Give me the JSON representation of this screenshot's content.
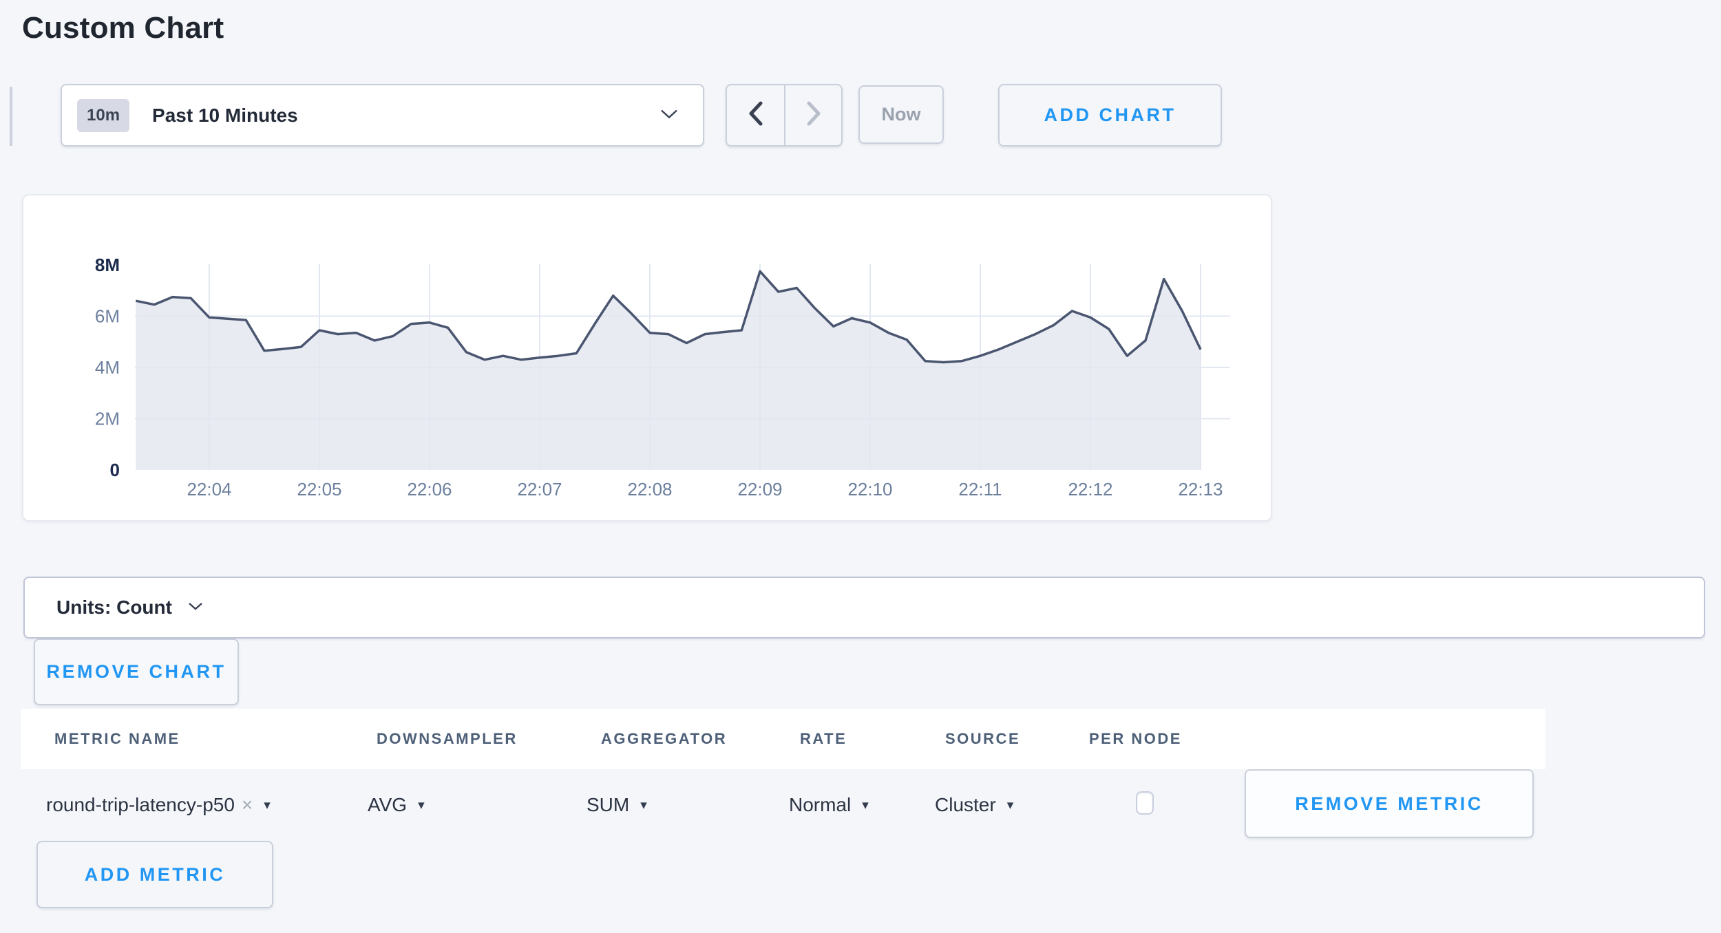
{
  "page": {
    "title": "Custom Chart",
    "background_color": "#f4f6fa",
    "accent_blue": "#2196f3"
  },
  "toolbar": {
    "time_window_badge": "10m",
    "time_window_label": "Past 10 Minutes",
    "prev_button": "chevron-left",
    "next_button": "chevron-right",
    "now_label": "Now",
    "add_chart_label": "ADD CHART"
  },
  "units_bar": {
    "label": "Units: Count"
  },
  "remove_chart_label": "REMOVE CHART",
  "chart_data": {
    "type": "area",
    "title": "",
    "units": "Count",
    "grid": true,
    "legend_position": "none",
    "ylim_millions": [
      0,
      8
    ],
    "y_ticks": [
      "0",
      "2M",
      "4M",
      "6M",
      "8M"
    ],
    "x_ticks": [
      "22:04",
      "22:05",
      "22:06",
      "22:07",
      "22:08",
      "22:09",
      "22:10",
      "22:11",
      "22:12",
      "22:13"
    ],
    "series": [
      {
        "name": "round-trip-latency-p50",
        "start_time": "22:03:20",
        "end_time": "22:13:00",
        "interval_seconds": 10,
        "values_millions": [
          6.6,
          6.45,
          6.75,
          6.7,
          5.95,
          5.9,
          5.85,
          4.65,
          4.72,
          4.8,
          5.45,
          5.3,
          5.35,
          5.05,
          5.22,
          5.7,
          5.75,
          5.55,
          4.6,
          4.3,
          4.45,
          4.3,
          4.38,
          4.45,
          4.55,
          5.7,
          6.8,
          6.1,
          5.35,
          5.3,
          4.95,
          5.3,
          5.38,
          5.45,
          7.75,
          6.95,
          7.1,
          6.3,
          5.6,
          5.92,
          5.75,
          5.35,
          5.08,
          4.25,
          4.2,
          4.25,
          4.45,
          4.7,
          5.0,
          5.3,
          5.65,
          6.2,
          5.95,
          5.5,
          4.45,
          5.05,
          7.45,
          6.2,
          4.7
        ]
      }
    ],
    "line_color": "#4a5570",
    "fill_color": "rgba(214,219,231,0.55)",
    "grid_color": "#e2e7f0",
    "tick_color": "#6b7f9d",
    "bold_tick_color": "#1c2b4d"
  },
  "metrics_table": {
    "headers": [
      "METRIC NAME",
      "DOWNSAMPLER",
      "AGGREGATOR",
      "RATE",
      "SOURCE",
      "PER NODE"
    ],
    "row": {
      "metric_name": "round-trip-latency-p50",
      "downsampler": "AVG",
      "aggregator": "SUM",
      "rate": "Normal",
      "source": "Cluster",
      "per_node_checked": false,
      "remove_label": "REMOVE METRIC"
    },
    "add_metric_label": "ADD METRIC"
  },
  "icons": {
    "close": "×",
    "caret_down": "▾"
  }
}
